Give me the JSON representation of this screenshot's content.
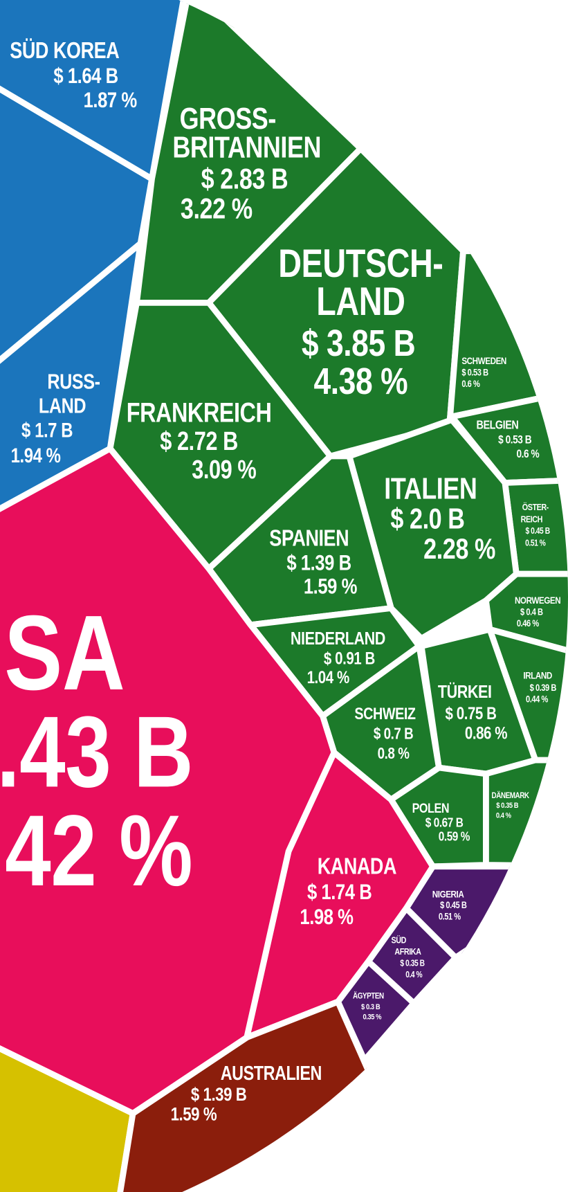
{
  "chart_data": {
    "type": "voronoi",
    "categories": [
      "SÜD KOREA",
      "RUSS-\nLAND",
      "GROSS-\nBRITANNIEN",
      "DEUTSCH-\nLAND",
      "FRANKREICH",
      "SCHWEDEN",
      "BELGIEN",
      "ÖSTER-\nREICH",
      "ITALIEN",
      "SPANIEN",
      "NORWEGEN",
      "NIEDERLAND",
      "IRLAND",
      "TÜRKEI",
      "SCHWEIZ",
      "POLEN",
      "DÄNEMARK",
      "NIGERIA",
      "SÜD\nAFRIKA",
      "ÄGYPTEN",
      "KANADA",
      "AUSTRALIEN",
      "SA"
    ],
    "values": [
      1.64,
      1.7,
      2.83,
      3.85,
      2.72,
      0.53,
      0.53,
      0.45,
      2.0,
      1.39,
      0.4,
      0.91,
      0.39,
      0.75,
      0.7,
      0.67,
      0.35,
      0.45,
      0.35,
      0.3,
      1.74,
      1.39,
      null
    ],
    "value_labels": [
      "$ 1.64 B",
      "$ 1.7 B",
      "$ 2.83 B",
      "$ 3.85 B",
      "$ 2.72 B",
      "$ 0.53 B",
      "$ 0.53 B",
      "$ 0.45 B",
      "$ 2.0 B",
      "$ 1.39 B",
      "$ 0.4 B",
      "$ 0.91 B",
      "$ 0.39 B",
      "$ 0.75 B",
      "$ 0.7 B",
      "$ 0.67 B",
      "$ 0.35 B",
      "$ 0.45 B",
      "$ 0.35 B",
      "$ 0.3 B",
      "$ 1.74 B",
      "$ 1.39 B",
      ".43 B"
    ],
    "shares": [
      1.87,
      1.94,
      3.22,
      4.38,
      3.09,
      0.6,
      0.6,
      0.51,
      2.28,
      1.59,
      0.46,
      1.04,
      0.44,
      0.86,
      0.8,
      0.59,
      0.4,
      0.51,
      0.4,
      0.35,
      1.98,
      1.59,
      null
    ],
    "share_labels": [
      "1.87 %",
      "1.94 %",
      "3.22 %",
      "4.38 %",
      "3.09 %",
      "0.6 %",
      "0.6 %",
      "0.51 %",
      "2.28 %",
      "1.59 %",
      "0.46 %",
      "1.04 %",
      "0.44 %",
      "0.86 %",
      "0.8 %",
      "0.59 %",
      "0.4 %",
      "0.51 %",
      "0.4 %",
      "0.35 %",
      "1.98 %",
      "1.59 %",
      "42 %"
    ],
    "colors": [
      "#1b75bc",
      "#1b75bc",
      "#1c7a2a",
      "#1c7a2a",
      "#1c7a2a",
      "#1c7a2a",
      "#1c7a2a",
      "#1c7a2a",
      "#1c7a2a",
      "#1c7a2a",
      "#1c7a2a",
      "#1c7a2a",
      "#1c7a2a",
      "#1c7a2a",
      "#1c7a2a",
      "#1c7a2a",
      "#1c7a2a",
      "#4b196a",
      "#4b196a",
      "#4b196a",
      "#e80e5b",
      "#8b1e0c",
      "#e80e5b"
    ]
  }
}
